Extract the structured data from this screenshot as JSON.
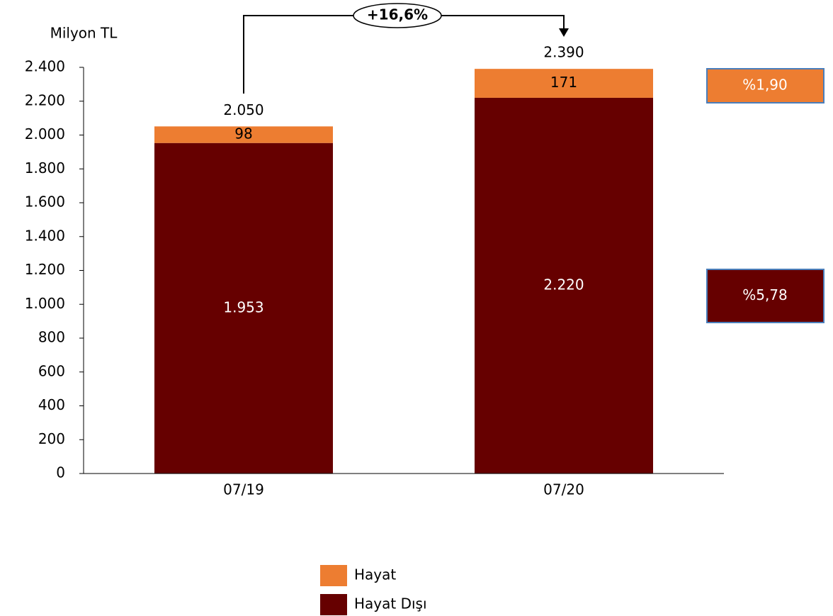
{
  "chart_data": {
    "type": "stacked-bar",
    "y_label": "Milyon TL",
    "categories": [
      "07/19",
      "07/20"
    ],
    "series": [
      {
        "name": "Hayat Dışı",
        "color": "#660000",
        "values": [
          1953,
          2220
        ],
        "value_labels": [
          "1.953",
          "2.220"
        ],
        "side_label": "%5,78"
      },
      {
        "name": "Hayat",
        "color": "#ed7d31",
        "values": [
          98,
          171
        ],
        "side_label": "%1,90"
      }
    ],
    "totals": {
      "values": [
        2050,
        2390
      ],
      "value_labels": [
        "2.050",
        "2.390"
      ]
    },
    "change_label": "+16,6%",
    "ylim": [
      0,
      2400
    ],
    "yticks": [
      0,
      200,
      400,
      600,
      800,
      {
        "value": 1000,
        "label": "1.000"
      },
      {
        "value": 1200,
        "label": "1.200"
      },
      {
        "value": 1400,
        "label": "1.400"
      },
      {
        "value": 1600,
        "label": "1.600"
      },
      {
        "value": 1800,
        "label": "1.800"
      },
      {
        "value": 2000,
        "label": "2.000"
      },
      {
        "value": 2200,
        "label": "2.200"
      },
      {
        "value": 2400,
        "label": "2.400"
      }
    ],
    "grid": false
  }
}
